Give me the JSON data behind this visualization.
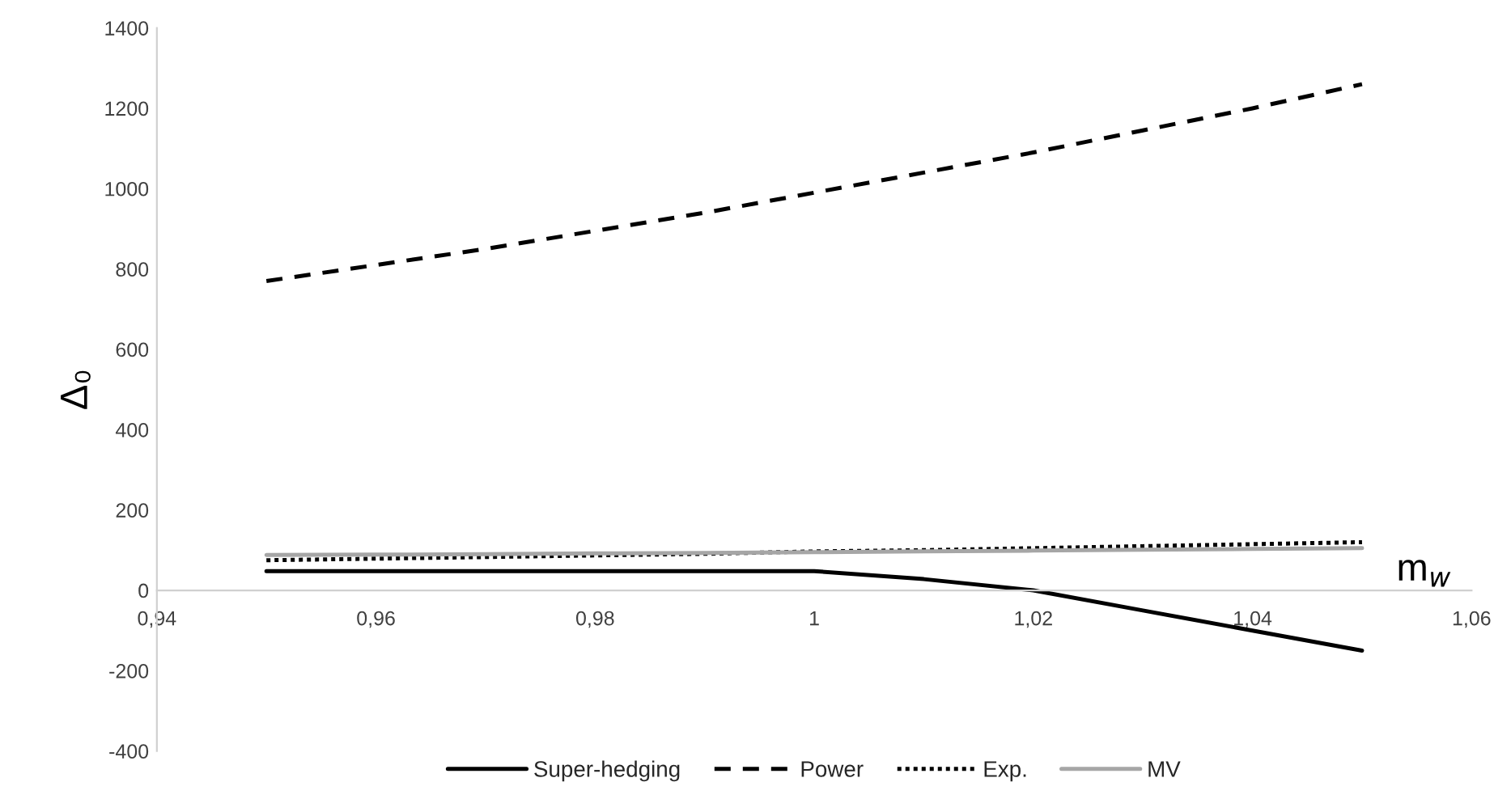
{
  "chart_data": {
    "type": "line",
    "x": [
      0.95,
      0.96,
      0.97,
      0.98,
      0.99,
      1.0,
      1.01,
      1.02,
      1.03,
      1.04,
      1.05
    ],
    "xlabel": "m$_{w}$",
    "ylabel": "Δ₀",
    "xlim": [
      0.94,
      1.06
    ],
    "xticks": [
      {
        "value": 0.94,
        "label": "0,94"
      },
      {
        "value": 0.96,
        "label": "0,96"
      },
      {
        "value": 0.98,
        "label": "0,98"
      },
      {
        "value": 1.0,
        "label": "1"
      },
      {
        "value": 1.02,
        "label": "1,02"
      },
      {
        "value": 1.04,
        "label": "1,04"
      },
      {
        "value": 1.06,
        "label": "1,06"
      }
    ],
    "ylim": [
      -400,
      1400
    ],
    "yticks": [
      -400,
      -200,
      0,
      200,
      400,
      600,
      800,
      1000,
      1200,
      1400
    ],
    "grid": false,
    "legend": "bottom",
    "series": [
      {
        "name": "Super-hedging",
        "color": "#000000",
        "line_style": "solid",
        "values": [
          48,
          48,
          48,
          48,
          48,
          48,
          28,
          0,
          -50,
          -100,
          -150
        ]
      },
      {
        "name": "Power",
        "color": "#000000",
        "line_style": "dashed",
        "values": [
          770,
          810,
          850,
          895,
          940,
          990,
          1040,
          1090,
          1145,
          1200,
          1260
        ]
      },
      {
        "name": "Exp.",
        "color": "#000000",
        "line_style": "dotted",
        "values": [
          75,
          79,
          83,
          87,
          91,
          97,
          100,
          105,
          110,
          115,
          120
        ]
      },
      {
        "name": "MV",
        "color": "#a6a6a6",
        "line_style": "solid",
        "values": [
          88,
          89,
          90,
          92,
          93,
          95,
          97,
          99,
          101,
          103,
          105
        ]
      }
    ]
  }
}
